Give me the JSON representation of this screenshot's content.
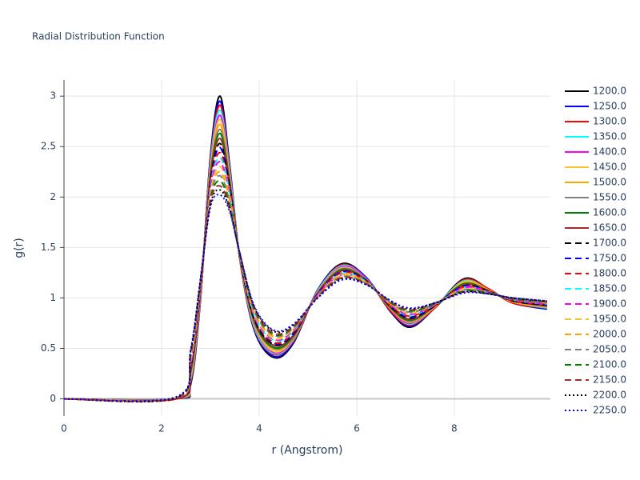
{
  "chart_data": {
    "type": "line",
    "title": "Radial Distribution Function",
    "x_label": "r (Angstrom)",
    "y_label": "g(r)",
    "xlim": [
      0,
      9.97
    ],
    "ylim": [
      -0.17,
      3.16
    ],
    "xticks": [
      0,
      2,
      4,
      6,
      8
    ],
    "yticks": [
      0,
      0.5,
      1,
      1.5,
      2,
      2.5,
      3
    ],
    "grid": true,
    "legend": "right",
    "x": [
      0,
      2.3,
      2.6,
      2.8,
      3.0,
      3.2,
      3.4,
      3.6,
      3.9,
      4.3,
      4.7,
      5.2,
      5.7,
      6.2,
      6.7,
      7.1,
      7.6,
      8.2,
      8.7,
      9.2,
      9.9
    ],
    "series": [
      {
        "name": "1200.0",
        "color": "#000000",
        "dash": "solid",
        "values": [
          0,
          0,
          0.15,
          1,
          2.4,
          3,
          2.3,
          1.4,
          0.68,
          0.41,
          0.55,
          1.08,
          1.34,
          1.2,
          0.86,
          0.71,
          0.9,
          1.19,
          1.09,
          0.95,
          0.89
        ]
      },
      {
        "name": "1250.0",
        "color": "#0000ff",
        "dash": "solid",
        "values": [
          0,
          0,
          0.17,
          1.01,
          2.38,
          2.95,
          2.28,
          1.4,
          0.69,
          0.42,
          0.56,
          1.08,
          1.33,
          1.2,
          0.87,
          0.72,
          0.9,
          1.18,
          1.09,
          0.95,
          0.89
        ]
      },
      {
        "name": "1300.0",
        "color": "#ff0000",
        "dash": "solid",
        "values": [
          0,
          0,
          0.18,
          1.02,
          2.35,
          2.91,
          2.26,
          1.4,
          0.7,
          0.44,
          0.57,
          1.07,
          1.33,
          1.19,
          0.87,
          0.73,
          0.9,
          1.18,
          1.09,
          0.95,
          0.9
        ]
      },
      {
        "name": "1350.0",
        "color": "#00ffff",
        "dash": "solid",
        "values": [
          0,
          0,
          0.2,
          1.03,
          2.33,
          2.86,
          2.24,
          1.41,
          0.71,
          0.45,
          0.58,
          1.07,
          1.32,
          1.19,
          0.88,
          0.74,
          0.91,
          1.17,
          1.08,
          0.96,
          0.9
        ]
      },
      {
        "name": "1400.0",
        "color": "#ff00ff",
        "dash": "solid",
        "values": [
          0,
          0,
          0.22,
          1.04,
          2.3,
          2.81,
          2.21,
          1.41,
          0.73,
          0.46,
          0.59,
          1.06,
          1.31,
          1.19,
          0.88,
          0.75,
          0.91,
          1.16,
          1.08,
          0.96,
          0.91
        ]
      },
      {
        "name": "1450.0",
        "color": "#f4c430",
        "dash": "solid",
        "values": [
          0,
          0,
          0.23,
          1.05,
          2.28,
          2.77,
          2.19,
          1.41,
          0.74,
          0.47,
          0.6,
          1.06,
          1.3,
          1.18,
          0.89,
          0.76,
          0.91,
          1.16,
          1.08,
          0.96,
          0.91
        ]
      },
      {
        "name": "1500.0",
        "color": "#ffa500",
        "dash": "solid",
        "values": [
          0,
          0,
          0.25,
          1.06,
          2.26,
          2.72,
          2.17,
          1.41,
          0.75,
          0.49,
          0.6,
          1.06,
          1.29,
          1.18,
          0.89,
          0.76,
          0.91,
          1.15,
          1.08,
          0.96,
          0.91
        ]
      },
      {
        "name": "1550.0",
        "color": "#808080",
        "dash": "solid",
        "values": [
          0,
          0,
          0.27,
          1.07,
          2.23,
          2.67,
          2.15,
          1.42,
          0.76,
          0.5,
          0.61,
          1.05,
          1.29,
          1.18,
          0.9,
          0.77,
          0.92,
          1.14,
          1.07,
          0.97,
          0.92
        ]
      },
      {
        "name": "1600.0",
        "color": "#008000",
        "dash": "solid",
        "values": [
          0,
          0,
          0.28,
          1.08,
          2.21,
          2.63,
          2.13,
          1.42,
          0.77,
          0.51,
          0.62,
          1.05,
          1.28,
          1.17,
          0.9,
          0.78,
          0.92,
          1.14,
          1.07,
          0.97,
          0.92
        ]
      },
      {
        "name": "1650.0",
        "color": "#a52a2a",
        "dash": "solid",
        "values": [
          0,
          0,
          0.3,
          1.09,
          2.19,
          2.58,
          2.11,
          1.42,
          0.78,
          0.53,
          0.63,
          1.05,
          1.27,
          1.17,
          0.91,
          0.79,
          0.92,
          1.13,
          1.07,
          0.97,
          0.92
        ]
      },
      {
        "name": "1700.0",
        "color": "#000000",
        "dash": "dash",
        "values": [
          0,
          0,
          0.32,
          1.1,
          2.16,
          2.53,
          2.09,
          1.42,
          0.79,
          0.54,
          0.64,
          1.04,
          1.26,
          1.17,
          0.91,
          0.8,
          0.92,
          1.12,
          1.07,
          0.97,
          0.93
        ]
      },
      {
        "name": "1750.0",
        "color": "#0000ff",
        "dash": "dash",
        "values": [
          0,
          0,
          0.33,
          1.1,
          2.14,
          2.49,
          2.06,
          1.43,
          0.81,
          0.55,
          0.65,
          1.04,
          1.26,
          1.16,
          0.92,
          0.81,
          0.93,
          1.12,
          1.06,
          0.98,
          0.93
        ]
      },
      {
        "name": "1800.0",
        "color": "#ff0000",
        "dash": "dash",
        "values": [
          0,
          0,
          0.35,
          1.11,
          2.11,
          2.44,
          2.04,
          1.43,
          0.82,
          0.56,
          0.66,
          1.03,
          1.25,
          1.16,
          0.92,
          0.82,
          0.93,
          1.11,
          1.06,
          0.98,
          0.94
        ]
      },
      {
        "name": "1850.0",
        "color": "#00ffff",
        "dash": "dash",
        "values": [
          0,
          0.01,
          0.37,
          1.12,
          2.09,
          2.39,
          2.02,
          1.43,
          0.83,
          0.58,
          0.67,
          1.03,
          1.24,
          1.16,
          0.93,
          0.83,
          0.93,
          1.1,
          1.06,
          0.98,
          0.94
        ]
      },
      {
        "name": "1900.0",
        "color": "#ff00ff",
        "dash": "dash",
        "values": [
          0,
          0.01,
          0.38,
          1.13,
          2.07,
          2.35,
          2,
          1.43,
          0.84,
          0.59,
          0.68,
          1.03,
          1.23,
          1.15,
          0.93,
          0.84,
          0.93,
          1.1,
          1.06,
          0.98,
          0.94
        ]
      },
      {
        "name": "1950.0",
        "color": "#f4c430",
        "dash": "dash",
        "values": [
          0,
          0.01,
          0.4,
          1.14,
          2.04,
          2.3,
          1.98,
          1.44,
          0.85,
          0.6,
          0.69,
          1.02,
          1.23,
          1.15,
          0.94,
          0.85,
          0.94,
          1.09,
          1.05,
          0.99,
          0.95
        ]
      },
      {
        "name": "2000.0",
        "color": "#ffa500",
        "dash": "dash",
        "values": [
          0,
          0.01,
          0.42,
          1.15,
          2.02,
          2.25,
          1.96,
          1.44,
          0.86,
          0.62,
          0.7,
          1.02,
          1.22,
          1.15,
          0.94,
          0.86,
          0.94,
          1.08,
          1.05,
          0.99,
          0.95
        ]
      },
      {
        "name": "2050.0",
        "color": "#808080",
        "dash": "dash",
        "values": [
          0,
          0.01,
          0.43,
          1.16,
          2,
          2.21,
          1.94,
          1.44,
          0.87,
          0.63,
          0.7,
          1.02,
          1.21,
          1.14,
          0.95,
          0.86,
          0.94,
          1.08,
          1.05,
          0.99,
          0.95
        ]
      },
      {
        "name": "2100.0",
        "color": "#008000",
        "dash": "dash",
        "values": [
          0,
          0.01,
          0.45,
          1.17,
          1.97,
          2.16,
          1.91,
          1.44,
          0.89,
          0.64,
          0.71,
          1.01,
          1.2,
          1.14,
          0.95,
          0.87,
          0.94,
          1.07,
          1.05,
          0.99,
          0.96
        ]
      },
      {
        "name": "2150.0",
        "color": "#a52a2a",
        "dash": "dash",
        "values": [
          0,
          0.01,
          0.47,
          1.18,
          1.95,
          2.11,
          1.89,
          1.45,
          0.9,
          0.65,
          0.72,
          1.01,
          1.2,
          1.14,
          0.96,
          0.88,
          0.95,
          1.06,
          1.04,
          1,
          0.96
        ]
      },
      {
        "name": "2200.0",
        "color": "#000000",
        "dash": "dot",
        "values": [
          0,
          0.01,
          0.48,
          1.19,
          1.92,
          2.07,
          1.87,
          1.45,
          0.91,
          0.67,
          0.73,
          1,
          1.19,
          1.13,
          0.97,
          0.89,
          0.95,
          1.06,
          1.04,
          1,
          0.97
        ]
      },
      {
        "name": "2250.0",
        "color": "#0000ff",
        "dash": "dot",
        "values": [
          0,
          0.02,
          0.5,
          1.2,
          1.9,
          2.02,
          1.85,
          1.45,
          0.92,
          0.68,
          0.74,
          1,
          1.18,
          1.13,
          0.97,
          0.9,
          0.95,
          1.05,
          1.04,
          1,
          0.97
        ]
      }
    ]
  }
}
